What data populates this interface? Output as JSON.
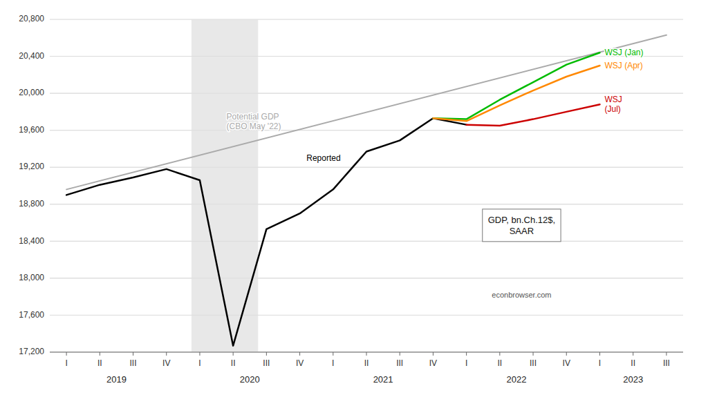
{
  "chart_data": {
    "type": "line",
    "xlim": [
      -0.5,
      18.5
    ],
    "xticks": [
      {
        "value": 0,
        "label": "I"
      },
      {
        "value": 1,
        "label": "II"
      },
      {
        "value": 2,
        "label": "III"
      },
      {
        "value": 3,
        "label": "IV"
      },
      {
        "value": 4,
        "label": "I"
      },
      {
        "value": 5,
        "label": "II"
      },
      {
        "value": 6,
        "label": "III"
      },
      {
        "value": 7,
        "label": "IV"
      },
      {
        "value": 8,
        "label": "I"
      },
      {
        "value": 9,
        "label": "II"
      },
      {
        "value": 10,
        "label": "III"
      },
      {
        "value": 11,
        "label": "IV"
      },
      {
        "value": 12,
        "label": "I"
      },
      {
        "value": 13,
        "label": "II"
      },
      {
        "value": 14,
        "label": "III"
      },
      {
        "value": 15,
        "label": "IV"
      },
      {
        "value": 16,
        "label": "I"
      },
      {
        "value": 17,
        "label": "II"
      },
      {
        "value": 18,
        "label": "III"
      }
    ],
    "year_labels": [
      "2019",
      "2020",
      "2021",
      "2022",
      "2023"
    ],
    "ylim": [
      17200,
      20800
    ],
    "yticks": [
      {
        "value": 17200,
        "label": "17,200"
      },
      {
        "value": 17600,
        "label": "17,600"
      },
      {
        "value": 18000,
        "label": "18,000"
      },
      {
        "value": 18400,
        "label": "18,400"
      },
      {
        "value": 18800,
        "label": "18,800"
      },
      {
        "value": 19200,
        "label": "19,200"
      },
      {
        "value": 19600,
        "label": "19,600"
      },
      {
        "value": 20000,
        "label": "20,000"
      },
      {
        "value": 20400,
        "label": "20,400"
      },
      {
        "value": 20800,
        "label": "20,800"
      }
    ],
    "grid": true,
    "shades": [
      {
        "x": [
          3.75,
          5.75
        ],
        "color": "#e8e8e8"
      }
    ],
    "series": [
      {
        "name": "Potential GDP\n(CBO May '22)",
        "color": "#aaaaaa",
        "x": [
          0,
          18
        ],
        "values": [
          18960,
          20630
        ]
      },
      {
        "name": "Reported",
        "color": "#000000",
        "x": [
          0,
          1,
          2,
          3,
          4,
          5,
          6,
          7,
          8,
          9,
          10,
          11,
          12
        ],
        "values": [
          18900,
          19010,
          19090,
          19180,
          19060,
          17270,
          18530,
          18700,
          18960,
          19370,
          19490,
          19730,
          19660
        ]
      },
      {
        "name": "WSJ (Jan)",
        "color": "#00bb00",
        "x": [
          11,
          12,
          13,
          14,
          15,
          16
        ],
        "values": [
          19730,
          19720,
          19930,
          20120,
          20310,
          20440
        ]
      },
      {
        "name": "WSJ (Apr)",
        "color": "#ff8800",
        "x": [
          11,
          12,
          13,
          14,
          15,
          16
        ],
        "values": [
          19730,
          19700,
          19870,
          20030,
          20180,
          20300
        ]
      },
      {
        "name": "WSJ\n(Jul)",
        "color": "#cc0000",
        "x": [
          12,
          13,
          14,
          15,
          16
        ],
        "values": [
          19660,
          19650,
          19720,
          19800,
          19880
        ]
      }
    ],
    "note": "GDP, bn.Ch.12$,\nSAAR",
    "source": "econbrowser.com"
  }
}
